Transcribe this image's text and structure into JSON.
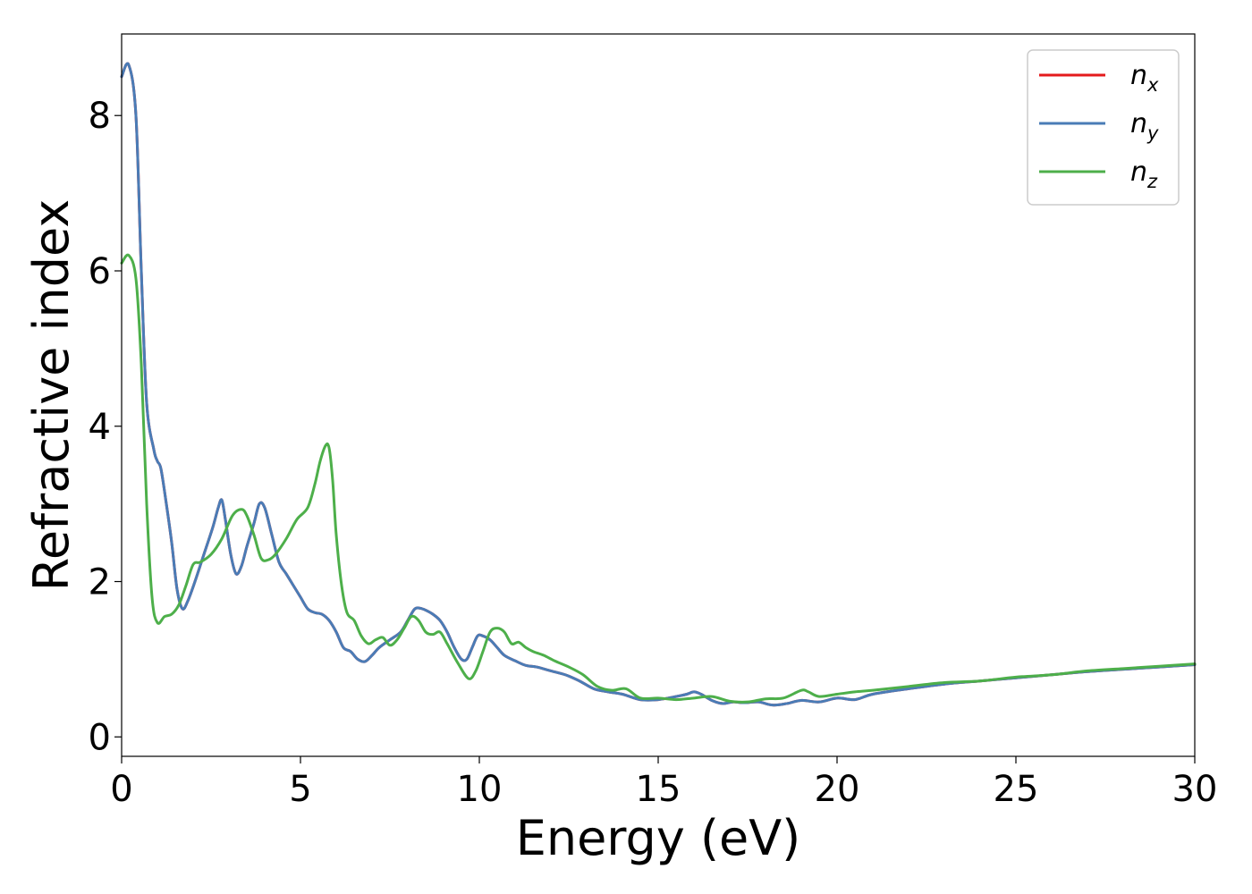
{
  "chart_data": {
    "type": "line",
    "xlabel": "Energy (eV)",
    "ylabel": "Refractive index",
    "xlim": [
      0,
      30
    ],
    "ylim": [
      -0.25,
      9.05
    ],
    "xticks": [
      0,
      5,
      10,
      15,
      20,
      25,
      30
    ],
    "yticks": [
      0,
      2,
      4,
      6,
      8
    ],
    "grid": false,
    "legend_position": "top-right",
    "series": [
      {
        "name": "n",
        "subscript": "x",
        "color": "#e41a1c",
        "x": [
          0,
          0.2,
          0.4,
          0.55,
          0.7,
          0.9,
          1.0,
          1.1,
          1.25,
          1.4,
          1.55,
          1.7,
          1.85,
          2.05,
          2.3,
          2.55,
          2.7,
          2.8,
          2.9,
          3.05,
          3.2,
          3.35,
          3.5,
          3.7,
          3.85,
          4.0,
          4.2,
          4.4,
          4.6,
          4.8,
          5.0,
          5.2,
          5.4,
          5.6,
          5.8,
          6.0,
          6.2,
          6.4,
          6.6,
          6.8,
          7.0,
          7.2,
          7.5,
          7.8,
          8.0,
          8.2,
          8.4,
          8.55,
          8.7,
          8.9,
          9.1,
          9.3,
          9.5,
          9.65,
          9.8,
          9.95,
          10.1,
          10.3,
          10.5,
          10.7,
          11.0,
          11.3,
          11.6,
          12.0,
          12.4,
          12.8,
          13.2,
          13.6,
          14.0,
          14.5,
          15.0,
          15.5,
          15.8,
          16.0,
          16.2,
          16.5,
          16.8,
          17.1,
          17.4,
          17.8,
          18.2,
          18.6,
          19.0,
          19.5,
          20.0,
          20.5,
          21.0,
          22.0,
          23.0,
          24.0,
          25.0,
          26.0,
          27.0,
          28.0,
          29.0,
          30.0
        ],
        "values": [
          8.5,
          8.65,
          8.0,
          6.0,
          4.3,
          3.7,
          3.55,
          3.45,
          3.0,
          2.5,
          1.9,
          1.65,
          1.75,
          2.0,
          2.35,
          2.7,
          2.95,
          3.05,
          2.8,
          2.35,
          2.1,
          2.2,
          2.45,
          2.75,
          3.0,
          2.95,
          2.6,
          2.25,
          2.1,
          1.95,
          1.8,
          1.65,
          1.6,
          1.58,
          1.5,
          1.35,
          1.15,
          1.1,
          1.0,
          0.97,
          1.05,
          1.15,
          1.25,
          1.35,
          1.5,
          1.65,
          1.65,
          1.62,
          1.58,
          1.5,
          1.35,
          1.15,
          1.0,
          1.0,
          1.15,
          1.3,
          1.3,
          1.25,
          1.15,
          1.05,
          0.98,
          0.92,
          0.9,
          0.85,
          0.8,
          0.72,
          0.62,
          0.58,
          0.55,
          0.48,
          0.48,
          0.52,
          0.55,
          0.58,
          0.55,
          0.47,
          0.43,
          0.45,
          0.44,
          0.45,
          0.41,
          0.43,
          0.47,
          0.45,
          0.5,
          0.48,
          0.55,
          0.62,
          0.68,
          0.72,
          0.76,
          0.8,
          0.84,
          0.87,
          0.9,
          0.93
        ]
      },
      {
        "name": "n",
        "subscript": "y",
        "color": "#4a7cb6",
        "x": [
          0,
          0.2,
          0.4,
          0.55,
          0.7,
          0.9,
          1.0,
          1.1,
          1.25,
          1.4,
          1.55,
          1.7,
          1.85,
          2.05,
          2.3,
          2.55,
          2.7,
          2.8,
          2.9,
          3.05,
          3.2,
          3.35,
          3.5,
          3.7,
          3.85,
          4.0,
          4.2,
          4.4,
          4.6,
          4.8,
          5.0,
          5.2,
          5.4,
          5.6,
          5.8,
          6.0,
          6.2,
          6.4,
          6.6,
          6.8,
          7.0,
          7.2,
          7.5,
          7.8,
          8.0,
          8.2,
          8.4,
          8.55,
          8.7,
          8.9,
          9.1,
          9.3,
          9.5,
          9.65,
          9.8,
          9.95,
          10.1,
          10.3,
          10.5,
          10.7,
          11.0,
          11.3,
          11.6,
          12.0,
          12.4,
          12.8,
          13.2,
          13.6,
          14.0,
          14.5,
          15.0,
          15.5,
          15.8,
          16.0,
          16.2,
          16.5,
          16.8,
          17.1,
          17.4,
          17.8,
          18.2,
          18.6,
          19.0,
          19.5,
          20.0,
          20.5,
          21.0,
          22.0,
          23.0,
          24.0,
          25.0,
          26.0,
          27.0,
          28.0,
          29.0,
          30.0
        ],
        "values": [
          8.5,
          8.65,
          8.0,
          6.0,
          4.3,
          3.7,
          3.55,
          3.45,
          3.0,
          2.5,
          1.9,
          1.65,
          1.75,
          2.0,
          2.35,
          2.7,
          2.95,
          3.05,
          2.8,
          2.35,
          2.1,
          2.2,
          2.45,
          2.75,
          3.0,
          2.95,
          2.6,
          2.25,
          2.1,
          1.95,
          1.8,
          1.65,
          1.6,
          1.58,
          1.5,
          1.35,
          1.15,
          1.1,
          1.0,
          0.97,
          1.05,
          1.15,
          1.25,
          1.35,
          1.5,
          1.65,
          1.65,
          1.62,
          1.58,
          1.5,
          1.35,
          1.15,
          1.0,
          1.0,
          1.15,
          1.3,
          1.3,
          1.25,
          1.15,
          1.05,
          0.98,
          0.92,
          0.9,
          0.85,
          0.8,
          0.72,
          0.62,
          0.58,
          0.55,
          0.48,
          0.48,
          0.52,
          0.55,
          0.58,
          0.55,
          0.47,
          0.43,
          0.45,
          0.44,
          0.45,
          0.41,
          0.43,
          0.47,
          0.45,
          0.5,
          0.48,
          0.55,
          0.62,
          0.68,
          0.72,
          0.76,
          0.8,
          0.84,
          0.87,
          0.9,
          0.93
        ]
      },
      {
        "name": "n",
        "subscript": "z",
        "color": "#4daf4a",
        "x": [
          0,
          0.2,
          0.4,
          0.55,
          0.7,
          0.85,
          1.0,
          1.2,
          1.4,
          1.6,
          1.8,
          2.0,
          2.2,
          2.5,
          2.8,
          3.1,
          3.35,
          3.5,
          3.7,
          3.9,
          4.1,
          4.3,
          4.6,
          4.9,
          5.2,
          5.4,
          5.55,
          5.7,
          5.8,
          5.9,
          6.0,
          6.15,
          6.3,
          6.5,
          6.7,
          6.9,
          7.1,
          7.3,
          7.5,
          7.7,
          7.9,
          8.1,
          8.3,
          8.5,
          8.7,
          8.9,
          9.1,
          9.4,
          9.7,
          9.9,
          10.1,
          10.3,
          10.5,
          10.7,
          10.9,
          11.1,
          11.3,
          11.5,
          11.8,
          12.1,
          12.5,
          12.9,
          13.3,
          13.7,
          14.1,
          14.5,
          15.0,
          15.5,
          16.0,
          16.5,
          17.0,
          17.5,
          18.0,
          18.5,
          19.0,
          19.2,
          19.5,
          20.0,
          20.5,
          21.0,
          22.0,
          23.0,
          24.0,
          25.0,
          26.0,
          27.0,
          28.0,
          29.0,
          30.0
        ],
        "values": [
          6.1,
          6.2,
          5.9,
          4.8,
          3.0,
          1.8,
          1.47,
          1.55,
          1.58,
          1.7,
          1.95,
          2.22,
          2.25,
          2.35,
          2.55,
          2.85,
          2.93,
          2.85,
          2.6,
          2.3,
          2.28,
          2.35,
          2.55,
          2.8,
          2.95,
          3.25,
          3.55,
          3.75,
          3.72,
          3.3,
          2.6,
          1.95,
          1.6,
          1.5,
          1.3,
          1.2,
          1.25,
          1.28,
          1.18,
          1.25,
          1.4,
          1.55,
          1.5,
          1.35,
          1.32,
          1.35,
          1.2,
          0.95,
          0.75,
          0.85,
          1.1,
          1.35,
          1.4,
          1.35,
          1.2,
          1.22,
          1.15,
          1.1,
          1.05,
          0.98,
          0.9,
          0.8,
          0.65,
          0.6,
          0.62,
          0.5,
          0.5,
          0.48,
          0.5,
          0.52,
          0.46,
          0.45,
          0.49,
          0.5,
          0.6,
          0.58,
          0.52,
          0.55,
          0.58,
          0.6,
          0.65,
          0.7,
          0.72,
          0.77,
          0.8,
          0.85,
          0.88,
          0.91,
          0.94
        ]
      }
    ]
  }
}
